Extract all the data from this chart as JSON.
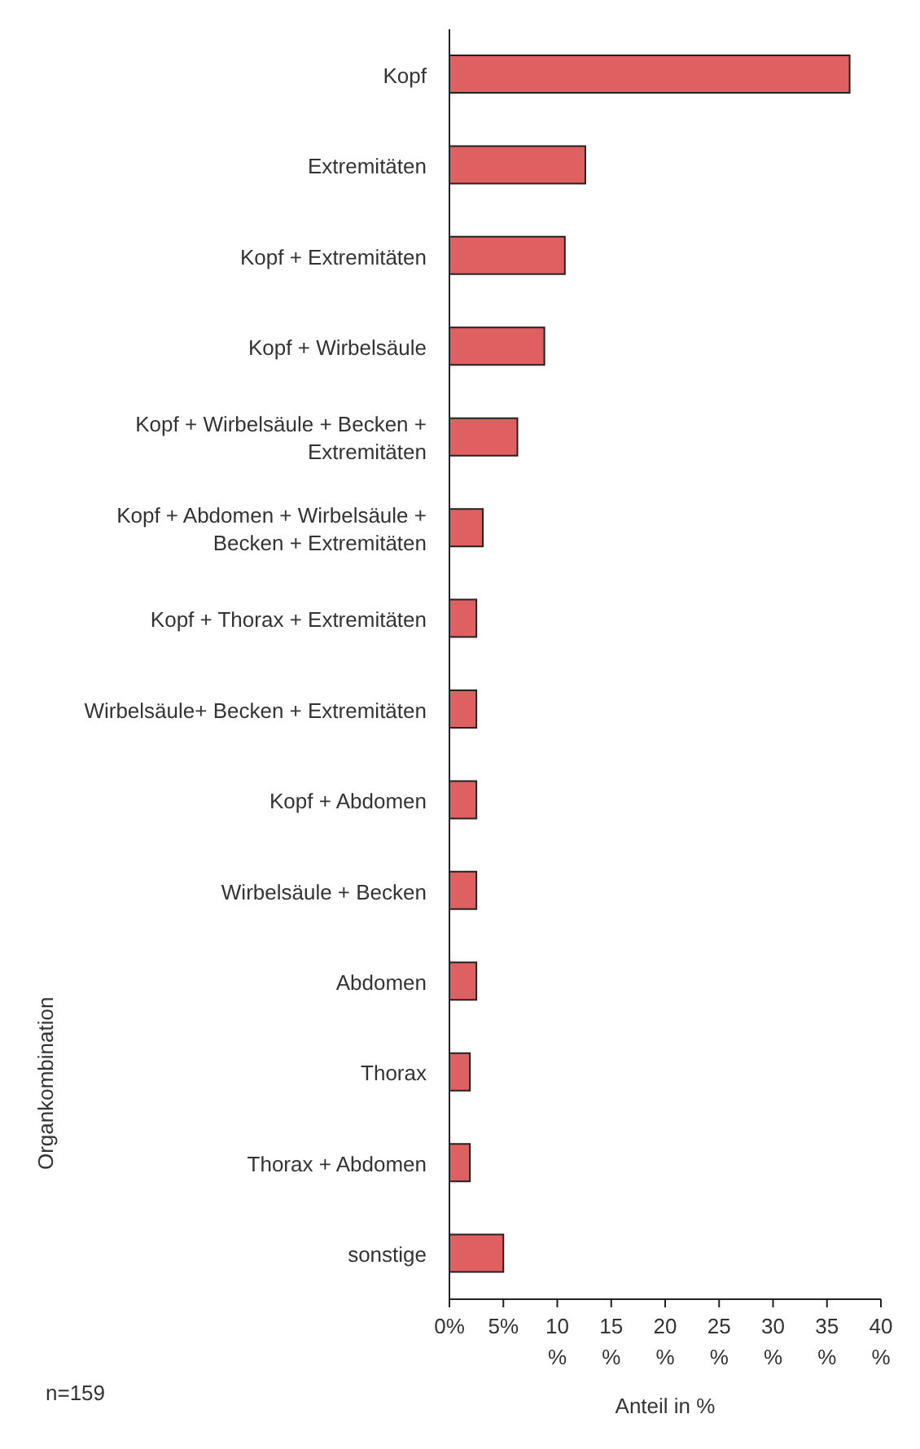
{
  "chart_data": {
    "type": "bar",
    "orientation": "horizontal",
    "xlabel": "Anteil in %",
    "ylabel": "Organkombination",
    "categories": [
      "Kopf",
      "Extremitäten",
      "Kopf + Extremitäten",
      "Kopf + Wirbelsäule",
      "Kopf + Wirbelsäule + Becken + Extremitäten",
      "Kopf + Abdomen + Wirbelsäule + Becken + Extremitäten",
      "Kopf + Thorax + Extremitäten",
      "Wirbelsäule+ Becken + Extremitäten",
      "Kopf + Abdomen",
      "Wirbelsäule + Becken",
      "Abdomen",
      "Thorax",
      "Thorax + Abdomen",
      "sonstige"
    ],
    "values": [
      37.1,
      12.6,
      10.7,
      8.8,
      6.3,
      3.1,
      2.5,
      2.5,
      2.5,
      2.5,
      2.5,
      1.9,
      1.9,
      5.0
    ],
    "color": "#e06062",
    "xlim": [
      0,
      40
    ],
    "xticks": [
      {
        "value": 0,
        "label": "0%"
      },
      {
        "value": 5,
        "label": "5%"
      },
      {
        "value": 10,
        "label": "10 %"
      },
      {
        "value": 15,
        "label": "15 %"
      },
      {
        "value": 20,
        "label": "20 %"
      },
      {
        "value": 25,
        "label": "25 %"
      },
      {
        "value": 30,
        "label": "30 %"
      },
      {
        "value": 35,
        "label": "35 %"
      },
      {
        "value": 40,
        "label": "40 %"
      }
    ],
    "annotations": [
      "n=159"
    ],
    "grid": false,
    "legend": false
  }
}
